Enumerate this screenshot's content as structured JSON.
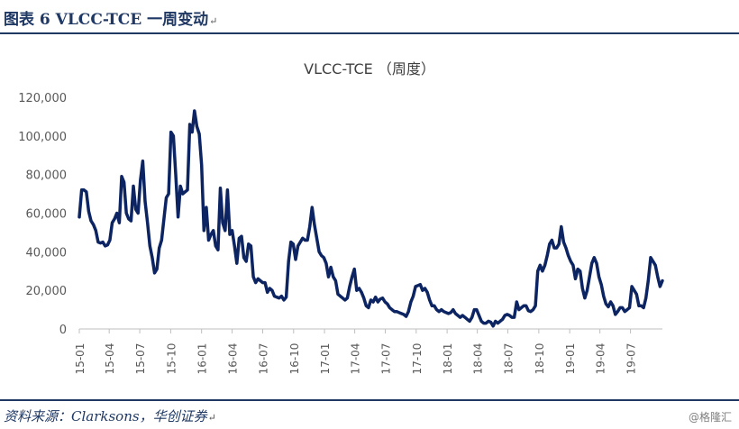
{
  "figure": {
    "title": "图表 6   VLCC-TCE 一周变动",
    "para_mark": "↵",
    "source": "资料来源：Clarksons，华创证券",
    "watermark": "@格隆汇"
  },
  "chart_data": {
    "type": "line",
    "title": "VLCC-TCE （周度）",
    "xlabel": "",
    "ylabel": "",
    "ylim": [
      0,
      120000
    ],
    "y_ticks": [
      "0",
      "20,000",
      "40,000",
      "60,000",
      "80,000",
      "100,000",
      "120,000"
    ],
    "x_ticks": [
      "15-01",
      "15-04",
      "15-07",
      "15-10",
      "16-01",
      "16-04",
      "16-07",
      "16-10",
      "17-01",
      "17-04",
      "17-07",
      "17-10",
      "18-01",
      "18-04",
      "18-07",
      "18-10",
      "19-01",
      "19-04",
      "19-07"
    ],
    "grid": false,
    "legend": "none",
    "series_color": "#0c2461",
    "series": [
      {
        "x": [
          "2015-01-02",
          "2015-01-09",
          "2015-01-16",
          "2015-01-23",
          "2015-01-30",
          "2015-02-06",
          "2015-02-13",
          "2015-02-20",
          "2015-02-27",
          "2015-03-06",
          "2015-03-13",
          "2015-03-20",
          "2015-03-27",
          "2015-04-03",
          "2015-04-10",
          "2015-04-17",
          "2015-04-24",
          "2015-05-01",
          "2015-05-08",
          "2015-05-15",
          "2015-05-22",
          "2015-05-29",
          "2015-06-05",
          "2015-06-12",
          "2015-06-19",
          "2015-06-26",
          "2015-07-03",
          "2015-07-10",
          "2015-07-17",
          "2015-07-24",
          "2015-07-31",
          "2015-08-07",
          "2015-08-14",
          "2015-08-21",
          "2015-08-28",
          "2015-09-04",
          "2015-09-11",
          "2015-09-18",
          "2015-09-25",
          "2015-10-02",
          "2015-10-09",
          "2015-10-16",
          "2015-10-23",
          "2015-10-30",
          "2015-11-06",
          "2015-11-13",
          "2015-11-20",
          "2015-11-27",
          "2015-12-04",
          "2015-12-11",
          "2015-12-18",
          "2015-12-25",
          "2016-01-01",
          "2016-01-08",
          "2016-01-15",
          "2016-01-22",
          "2016-01-29",
          "2016-02-05",
          "2016-02-12",
          "2016-02-19",
          "2016-02-26",
          "2016-03-04",
          "2016-03-11",
          "2016-03-18",
          "2016-03-25",
          "2016-04-01",
          "2016-04-08",
          "2016-04-15",
          "2016-04-22",
          "2016-04-29",
          "2016-05-06",
          "2016-05-13",
          "2016-05-20",
          "2016-05-27",
          "2016-06-03",
          "2016-06-10",
          "2016-06-17",
          "2016-06-24",
          "2016-07-01",
          "2016-07-08",
          "2016-07-15",
          "2016-07-22",
          "2016-07-29",
          "2016-08-05",
          "2016-08-12",
          "2016-08-19",
          "2016-08-26",
          "2016-09-02",
          "2016-09-09",
          "2016-09-16",
          "2016-09-23",
          "2016-09-30",
          "2016-10-07",
          "2016-10-14",
          "2016-10-21",
          "2016-10-28",
          "2016-11-04",
          "2016-11-11",
          "2016-11-18",
          "2016-11-25",
          "2016-12-02",
          "2016-12-09",
          "2016-12-16",
          "2016-12-23",
          "2016-12-30",
          "2017-01-06",
          "2017-01-13",
          "2017-01-20",
          "2017-01-27",
          "2017-02-03",
          "2017-02-10",
          "2017-02-17",
          "2017-02-24",
          "2017-03-03",
          "2017-03-10",
          "2017-03-17",
          "2017-03-24",
          "2017-03-31",
          "2017-04-07",
          "2017-04-14",
          "2017-04-21",
          "2017-04-28",
          "2017-05-05",
          "2017-05-12",
          "2017-05-19",
          "2017-05-26",
          "2017-06-02",
          "2017-06-09",
          "2017-06-16",
          "2017-06-23",
          "2017-06-30",
          "2017-07-07",
          "2017-07-14",
          "2017-07-21",
          "2017-07-28",
          "2017-08-04",
          "2017-08-11",
          "2017-08-18",
          "2017-08-25",
          "2017-09-01",
          "2017-09-08",
          "2017-09-15",
          "2017-09-22",
          "2017-09-29",
          "2017-10-06",
          "2017-10-13",
          "2017-10-20",
          "2017-10-27",
          "2017-11-03",
          "2017-11-10",
          "2017-11-17",
          "2017-11-24",
          "2017-12-01",
          "2017-12-08",
          "2017-12-15",
          "2017-12-22",
          "2017-12-29",
          "2018-01-05",
          "2018-01-12",
          "2018-01-19",
          "2018-01-26",
          "2018-02-02",
          "2018-02-09",
          "2018-02-16",
          "2018-02-23",
          "2018-03-02",
          "2018-03-09",
          "2018-03-16",
          "2018-03-23",
          "2018-03-30",
          "2018-04-06",
          "2018-04-13",
          "2018-04-20",
          "2018-04-27",
          "2018-05-04",
          "2018-05-11",
          "2018-05-18",
          "2018-05-25",
          "2018-06-01",
          "2018-06-08",
          "2018-06-15",
          "2018-06-22",
          "2018-06-29",
          "2018-07-06",
          "2018-07-13",
          "2018-07-20",
          "2018-07-27",
          "2018-08-03",
          "2018-08-10",
          "2018-08-17",
          "2018-08-24",
          "2018-08-31",
          "2018-09-07",
          "2018-09-14",
          "2018-09-21",
          "2018-09-28",
          "2018-10-05",
          "2018-10-12",
          "2018-10-19",
          "2018-10-26",
          "2018-11-02",
          "2018-11-09",
          "2018-11-16",
          "2018-11-23",
          "2018-11-30",
          "2018-12-07",
          "2018-12-14",
          "2018-12-21",
          "2018-12-28",
          "2019-01-04",
          "2019-01-11",
          "2019-01-18",
          "2019-01-25",
          "2019-02-01",
          "2019-02-08",
          "2019-02-15",
          "2019-02-22",
          "2019-03-01",
          "2019-03-08",
          "2019-03-15",
          "2019-03-22",
          "2019-03-29",
          "2019-04-05",
          "2019-04-12",
          "2019-04-19",
          "2019-04-26",
          "2019-05-03",
          "2019-05-10",
          "2019-05-17",
          "2019-05-24",
          "2019-05-31",
          "2019-06-07",
          "2019-06-14",
          "2019-06-21",
          "2019-06-28",
          "2019-07-05",
          "2019-07-12",
          "2019-07-19",
          "2019-07-26",
          "2019-08-02",
          "2019-08-09",
          "2019-08-16",
          "2019-08-23",
          "2019-08-30",
          "2019-09-06",
          "2019-09-13",
          "2019-09-20",
          "2019-09-27",
          "2019-10-04"
        ],
        "values": [
          58000,
          72000,
          72000,
          71000,
          61000,
          56000,
          54000,
          51000,
          45000,
          44500,
          45000,
          43000,
          43500,
          46000,
          55000,
          57000,
          60000,
          55000,
          79000,
          76000,
          60000,
          57000,
          56000,
          74000,
          62000,
          60000,
          77000,
          87000,
          66000,
          55000,
          43000,
          37000,
          29000,
          31000,
          42000,
          46000,
          57000,
          68000,
          70000,
          102000,
          100000,
          80000,
          58000,
          74000,
          70000,
          71000,
          72000,
          106000,
          102000,
          113000,
          105000,
          101000,
          85000,
          51000,
          63000,
          46000,
          49000,
          51000,
          43000,
          41000,
          73000,
          55000,
          51000,
          72000,
          49000,
          51000,
          43000,
          34000,
          47000,
          48000,
          37000,
          35000,
          44000,
          43000,
          27000,
          24000,
          26000,
          25000,
          24000,
          24000,
          19000,
          21000,
          20000,
          17000,
          16500,
          16000,
          17000,
          15000,
          16500,
          35000,
          45000,
          44000,
          36000,
          43000,
          45000,
          47000,
          46000,
          46000,
          53000,
          63000,
          54000,
          47000,
          40000,
          38000,
          37000,
          34000,
          27000,
          32000,
          27000,
          25000,
          18000,
          17000,
          16000,
          15000,
          16000,
          22000,
          27000,
          31000,
          20000,
          21000,
          19000,
          16000,
          12000,
          11000,
          15000,
          14000,
          16500,
          14000,
          15500,
          16000,
          14000,
          13000,
          11000,
          10000,
          9000,
          9000,
          8500,
          8000,
          7500,
          6500,
          9000,
          14000,
          17000,
          22000,
          22500,
          23000,
          20000,
          21000,
          19000,
          15000,
          12000,
          12000,
          10000,
          9000,
          10000,
          9000,
          8500,
          8000,
          8500,
          10000,
          8000,
          7000,
          6000,
          7000,
          6000,
          5000,
          4000,
          6000,
          10000,
          10000,
          7000,
          4000,
          3000,
          3000,
          4000,
          3500,
          1500,
          4000,
          3000,
          4000,
          5000,
          7000,
          7500,
          7000,
          6000,
          6000,
          14000,
          10000,
          11000,
          12000,
          12000,
          9500,
          9000,
          10000,
          12000,
          30000,
          33000,
          30000,
          33000,
          38000,
          44000,
          46000,
          42000,
          42000,
          44000,
          53000,
          45000,
          42000,
          38000,
          35000,
          33000,
          26000,
          31000,
          30000,
          21000,
          16000,
          20000,
          27000,
          34000,
          37000,
          34000,
          27000,
          23000,
          17000,
          13000,
          11500,
          14000,
          12000,
          7500,
          9000,
          11000,
          11000,
          9000,
          10000,
          11000,
          22000,
          20000,
          18000,
          12000,
          12000,
          11000,
          16000,
          25000,
          37000,
          35000,
          33000,
          27000,
          22000,
          25000
        ]
      }
    ]
  }
}
